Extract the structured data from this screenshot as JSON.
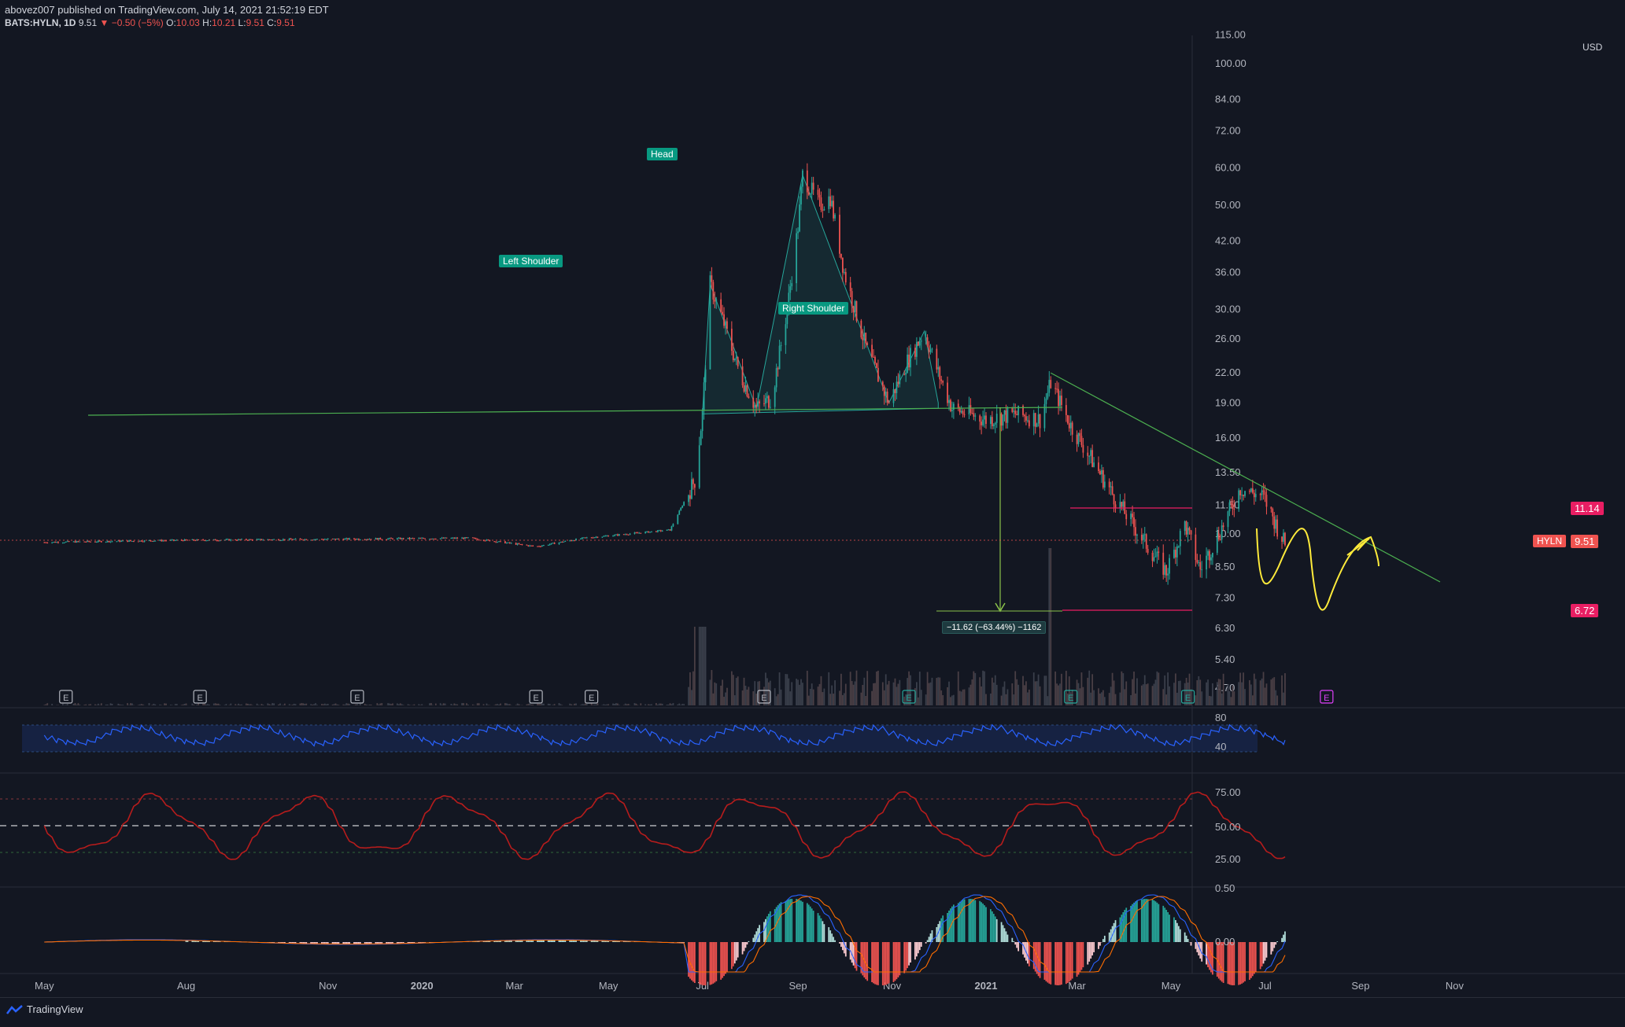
{
  "header": {
    "publisher": "abovez007",
    "published_text": "published on TradingView.com, July 14, 2021 21:52:19 EDT",
    "symbol": "BATS:HYLN, 1D",
    "last": "9.51",
    "change": "−0.50 (−5%)",
    "o_label": "O:",
    "o": "10.03",
    "h_label": "H:",
    "h": "10.21",
    "l_label": "L:",
    "l": "9.51",
    "c_label": "C:",
    "c": "9.51"
  },
  "annotations": {
    "left_shoulder": "Left Shoulder",
    "head": "Head",
    "right_shoulder": "Right Shoulder",
    "measure": "−11.62 (−63.44%) −1162"
  },
  "badges": {
    "level_upper": "11.14",
    "ticker": "HYLN",
    "ticker_price": "9.51",
    "level_lower": "6.72"
  },
  "footer": {
    "brand": "TradingView"
  },
  "colors": {
    "bg": "#131722",
    "up": "#26a69a",
    "down": "#ef5350",
    "neckline": "#4caf50",
    "pink": "#e91e63",
    "projection": "#ffeb3b",
    "rsi": "#2962ff",
    "stoch": "#b71c1c",
    "macd": "#2962ff",
    "signal": "#ff6d00"
  },
  "chart_data": [
    {
      "type": "line",
      "title": "",
      "xlabel": "",
      "ylabel": "USD",
      "y_scale": "log",
      "y_ticks": [
        "115.00",
        "100.00",
        "84.00",
        "72.00",
        "60.00",
        "50.00",
        "42.00",
        "36.00",
        "30.00",
        "26.00",
        "22.00",
        "19.00",
        "16.00",
        "13.50",
        "11.50",
        "10.00",
        "8.50",
        "7.30",
        "6.30",
        "5.40",
        "4.70"
      ],
      "x_ticks": [
        "May",
        "Aug",
        "Nov",
        "2020",
        "Mar",
        "May",
        "Jul",
        "Sep",
        "Nov",
        "2021",
        "Mar",
        "May",
        "Jul",
        "Sep",
        "Nov"
      ],
      "series": [
        {
          "values": [
            [
              "2019-05-01",
              9.6
            ],
            [
              "2019-08-01",
              9.7
            ],
            [
              "2019-11-01",
              9.75
            ],
            [
              "2020-02-01",
              9.8
            ],
            [
              "2020-03-15",
              9.4
            ],
            [
              "2020-04-15",
              9.8
            ],
            [
              "2020-06-10",
              10.2
            ],
            [
              "2020-06-26",
              13.0
            ],
            [
              "2020-07-01",
              18.0
            ],
            [
              "2020-07-06",
              34.0
            ],
            [
              "2020-07-15",
              28.0
            ],
            [
              "2020-07-25",
              22.0
            ],
            [
              "2020-08-05",
              18.5
            ],
            [
              "2020-08-15",
              19.5
            ],
            [
              "2020-08-25",
              30.0
            ],
            [
              "2020-09-01",
              45.0
            ],
            [
              "2020-09-04",
              58.0
            ],
            [
              "2020-09-15",
              50.0
            ],
            [
              "2020-09-22",
              52.0
            ],
            [
              "2020-10-01",
              36.0
            ],
            [
              "2020-10-15",
              25.0
            ],
            [
              "2020-10-30",
              19.0
            ],
            [
              "2020-11-10",
              23.0
            ],
            [
              "2020-11-22",
              27.0
            ],
            [
              "2020-12-01",
              22.0
            ],
            [
              "2020-12-10",
              18.5
            ],
            [
              "2021-01-01",
              17.5
            ],
            [
              "2021-01-20",
              18.0
            ],
            [
              "2021-02-05",
              17.5
            ],
            [
              "2021-02-12",
              21.0
            ],
            [
              "2021-02-25",
              17.0
            ],
            [
              "2021-03-10",
              14.5
            ],
            [
              "2021-03-25",
              12.0
            ],
            [
              "2021-04-15",
              9.5
            ],
            [
              "2021-04-28",
              8.3
            ],
            [
              "2021-05-10",
              10.5
            ],
            [
              "2021-05-20",
              8.4
            ],
            [
              "2021-06-01",
              10.0
            ],
            [
              "2021-06-15",
              12.5
            ],
            [
              "2021-06-30",
              12.0
            ],
            [
              "2021-07-14",
              9.51
            ]
          ]
        }
      ],
      "levels": [
        11.14,
        6.72
      ],
      "patterns": [
        "Left Shoulder",
        "Head",
        "Right Shoulder"
      ]
    },
    {
      "type": "line",
      "title": "",
      "y_ticks": [
        "80",
        "40"
      ],
      "note_range": [
        30,
        70
      ]
    },
    {
      "type": "line",
      "title": "",
      "y_ticks": [
        "75.00",
        "50.00",
        "25.00"
      ]
    },
    {
      "type": "bar",
      "title": "",
      "y_ticks": [
        "0.50",
        "0.00"
      ]
    }
  ],
  "y_axis_unit": "USD"
}
